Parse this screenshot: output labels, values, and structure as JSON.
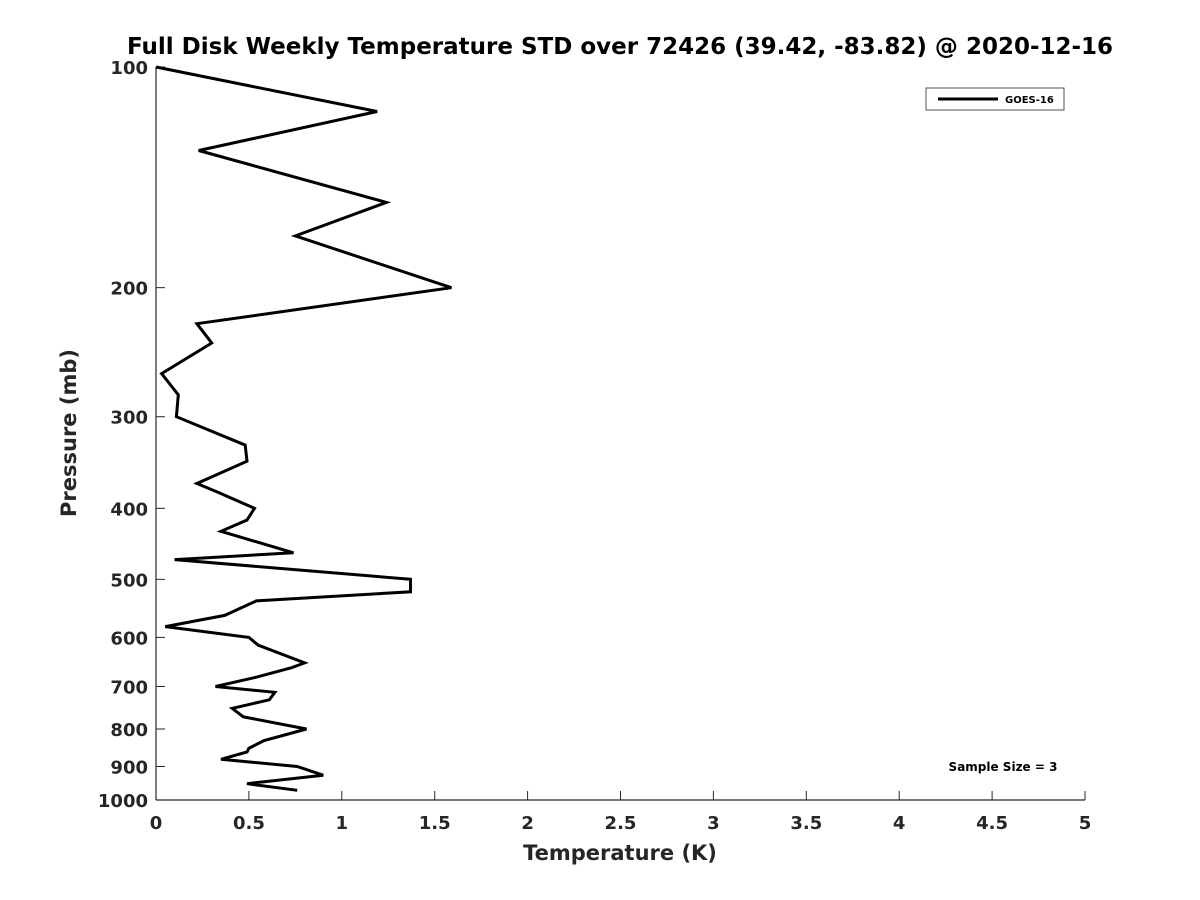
{
  "chart_data": {
    "type": "line",
    "title": "Full Disk Weekly Temperature STD over 72426 (39.42, -83.82) @ 2020-12-16",
    "xlabel": "Temperature (K)",
    "ylabel": "Pressure (mb)",
    "xlim": [
      0,
      5
    ],
    "ylim": [
      100,
      1000
    ],
    "y_scale": "log",
    "y_reversed": true,
    "grid": false,
    "legend_position": "top-right",
    "x_ticks": [
      0,
      0.5,
      1,
      1.5,
      2,
      2.5,
      3,
      3.5,
      4,
      4.5,
      5
    ],
    "x_tick_labels": [
      "0",
      "0.5",
      "1",
      "1.5",
      "2",
      "2.5",
      "3",
      "3.5",
      "4",
      "4.5",
      "5"
    ],
    "y_ticks": [
      100,
      200,
      300,
      400,
      500,
      600,
      700,
      800,
      900,
      1000
    ],
    "y_tick_labels": [
      "100",
      "200",
      "300",
      "400",
      "500",
      "600",
      "700",
      "800",
      "900",
      "1000"
    ],
    "series": [
      {
        "name": "GOES-16",
        "color": "#000000",
        "x": [
          0.0,
          1.19,
          0.23,
          1.24,
          0.75,
          1.59,
          0.22,
          0.3,
          0.03,
          0.12,
          0.11,
          0.48,
          0.49,
          0.22,
          0.33,
          0.53,
          0.49,
          0.35,
          0.74,
          0.1,
          1.37,
          1.37,
          0.54,
          0.37,
          0.05,
          0.5,
          0.55,
          0.8,
          0.73,
          0.54,
          0.32,
          0.64,
          0.61,
          0.41,
          0.47,
          0.81,
          0.58,
          0.5,
          0.49,
          0.35,
          0.76,
          0.9,
          0.49,
          0.76
        ],
        "y": [
          100,
          115,
          130,
          153,
          170,
          200,
          224,
          238,
          262,
          280,
          300,
          328,
          345,
          370,
          380,
          400,
          415,
          430,
          460,
          470,
          500,
          520,
          535,
          560,
          580,
          600,
          615,
          650,
          660,
          680,
          700,
          713,
          730,
          750,
          770,
          800,
          830,
          850,
          860,
          880,
          900,
          925,
          950,
          970
        ]
      }
    ],
    "annotations": [
      "Sample Size = 3"
    ]
  }
}
